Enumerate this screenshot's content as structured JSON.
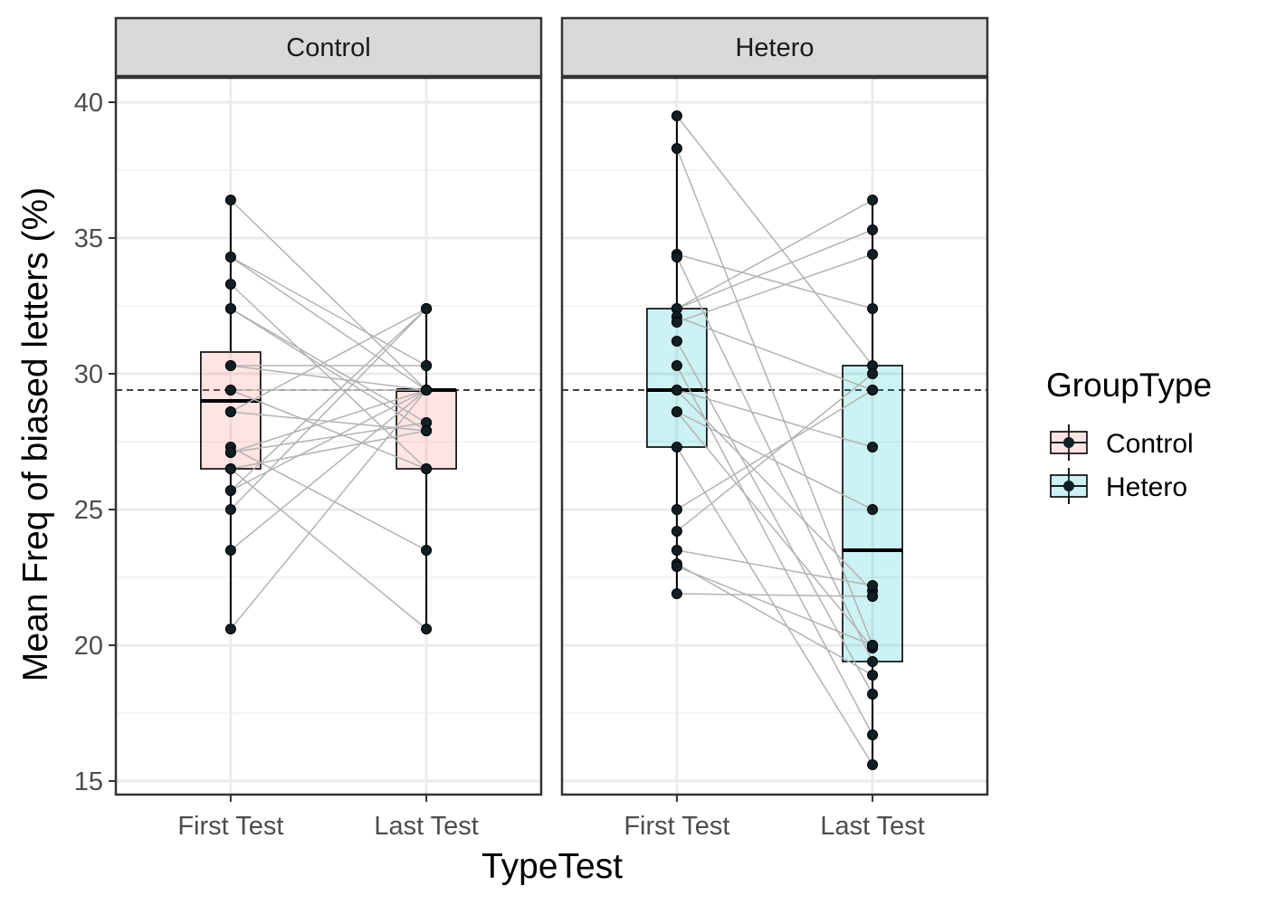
{
  "chart_data": {
    "type": "boxplot",
    "facet_variable": "GroupType",
    "xlabel": "TypeTest",
    "ylabel": "Mean Freq of biased letters (%)",
    "categories": [
      "First Test",
      "Last Test"
    ],
    "ylim": [
      14.5,
      40.9
    ],
    "yticks": [
      15,
      20,
      25,
      30,
      35,
      40
    ],
    "reference_line": 29.4,
    "grid": true,
    "legend": {
      "title": "GroupType",
      "position": "right",
      "items": [
        {
          "label": "Control",
          "color": "#F8766D"
        },
        {
          "label": "Hetero",
          "color": "#00BFC4"
        }
      ]
    },
    "panels": [
      {
        "name": "Control",
        "fill": "#F8766D",
        "boxes": [
          {
            "x": "First Test",
            "min": 20.6,
            "q1": 26.5,
            "median": 29.0,
            "q3": 30.8,
            "max": 36.4
          },
          {
            "x": "Last Test",
            "min": 20.6,
            "q1": 26.5,
            "median": 29.4,
            "q3": 29.4,
            "max": 32.4
          }
        ],
        "pairs": [
          [
            36.4,
            29.4
          ],
          [
            34.3,
            29.4
          ],
          [
            34.3,
            30.3
          ],
          [
            33.3,
            26.5
          ],
          [
            32.4,
            28.2
          ],
          [
            32.4,
            27.9
          ],
          [
            30.3,
            30.3
          ],
          [
            30.3,
            29.4
          ],
          [
            29.4,
            26.5
          ],
          [
            29.4,
            29.4
          ],
          [
            28.6,
            27.9
          ],
          [
            28.6,
            32.4
          ],
          [
            27.3,
            23.5
          ],
          [
            27.1,
            28.2
          ],
          [
            27.1,
            29.4
          ],
          [
            26.5,
            27.9
          ],
          [
            26.5,
            20.6
          ],
          [
            25.7,
            29.4
          ],
          [
            25.7,
            32.4
          ],
          [
            25.0,
            32.4
          ],
          [
            23.5,
            29.4
          ],
          [
            20.6,
            29.4
          ]
        ]
      },
      {
        "name": "Hetero",
        "fill": "#00BFC4",
        "boxes": [
          {
            "x": "First Test",
            "min": 21.9,
            "q1": 27.3,
            "median": 29.4,
            "q3": 32.4,
            "max": 39.5
          },
          {
            "x": "Last Test",
            "min": 15.6,
            "q1": 19.4,
            "median": 23.5,
            "q3": 30.3,
            "max": 36.4
          }
        ],
        "pairs": [
          [
            39.5,
            30.3
          ],
          [
            38.3,
            20.0
          ],
          [
            34.4,
            32.4
          ],
          [
            34.3,
            19.4
          ],
          [
            32.4,
            36.4
          ],
          [
            32.4,
            35.3
          ],
          [
            32.1,
            29.4
          ],
          [
            31.9,
            34.4
          ],
          [
            31.2,
            18.2
          ],
          [
            30.3,
            16.7
          ],
          [
            29.4,
            22.0
          ],
          [
            29.4,
            27.3
          ],
          [
            28.6,
            19.9
          ],
          [
            28.6,
            25.0
          ],
          [
            27.3,
            15.6
          ],
          [
            25.0,
            29.4
          ],
          [
            24.2,
            30.0
          ],
          [
            23.5,
            22.2
          ],
          [
            23.0,
            18.9
          ],
          [
            22.9,
            20.0
          ],
          [
            21.9,
            21.8
          ]
        ]
      }
    ]
  }
}
